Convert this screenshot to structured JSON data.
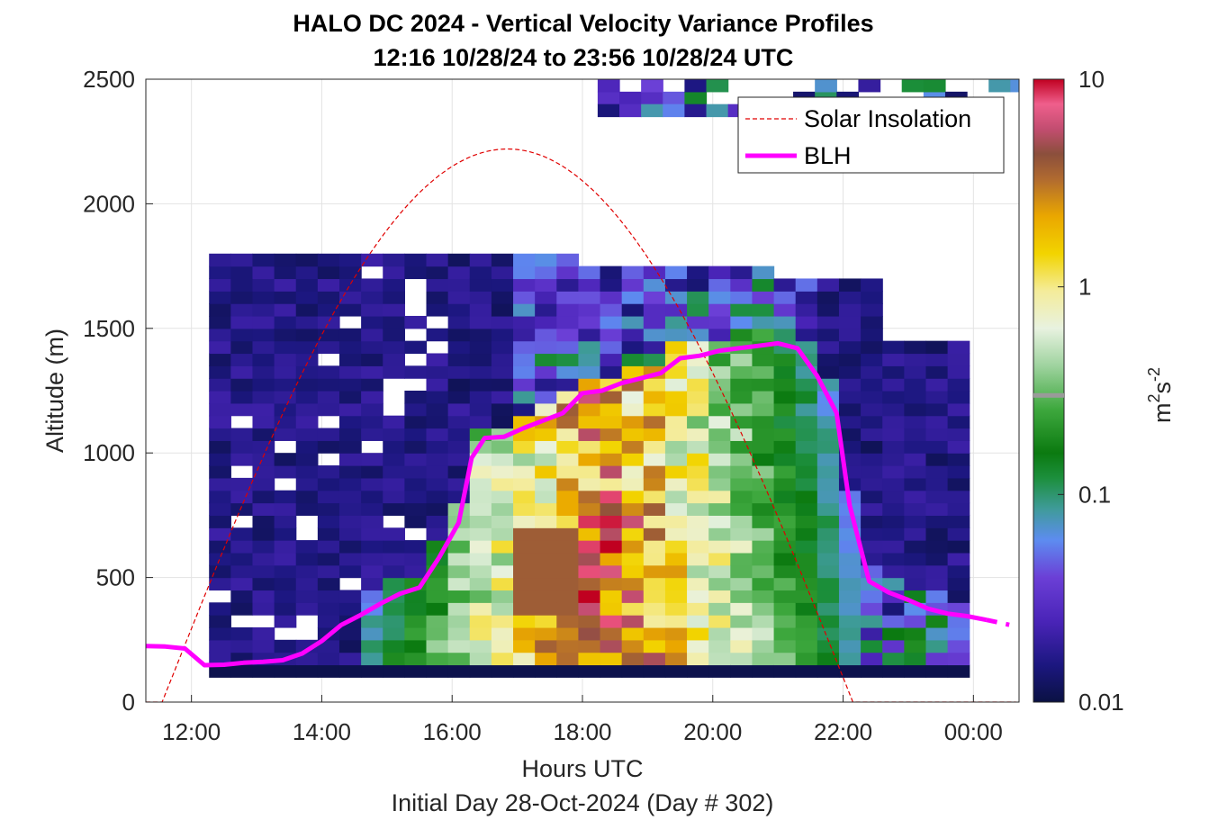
{
  "chart_data": {
    "type": "heatmap",
    "title": "HALO DC 2024 - Vertical Velocity Variance Profiles",
    "subtitle": "12:16 10/28/24 to 23:56 10/28/24  UTC",
    "xlabel": "Hours UTC",
    "xlabel2": "Initial Day 28-Oct-2024 (Day # 302)",
    "ylabel": "Altitude (m)",
    "x_ticks": [
      "12:00",
      "14:00",
      "16:00",
      "18:00",
      "20:00",
      "22:00",
      "00:00"
    ],
    "y_ticks": [
      "0",
      "500",
      "1000",
      "1500",
      "2000",
      "2500"
    ],
    "xlim_hours": [
      11.3,
      24.7
    ],
    "ylim": [
      0,
      2500
    ],
    "colorbar": {
      "label": "m²s⁻²",
      "label_base": "m",
      "label_exp1": "2",
      "label_mid": "s",
      "label_exp2": "-2",
      "scale": "log",
      "range": [
        0.01,
        10
      ],
      "ticks": [
        "0.01",
        "0.1",
        "1",
        "10"
      ]
    },
    "legend": {
      "placement": "top-right",
      "entries": [
        {
          "name": "Solar Insolation",
          "style": "dashed",
          "color": "#e00000"
        },
        {
          "name": "BLH",
          "style": "solid",
          "color": "#ff00ff"
        }
      ]
    },
    "blh": {
      "x_hours": [
        11.3,
        11.6,
        11.9,
        12.2,
        12.5,
        12.8,
        13.1,
        13.4,
        13.7,
        14.0,
        14.3,
        14.6,
        14.9,
        15.2,
        15.5,
        15.8,
        16.1,
        16.3,
        16.5,
        16.8,
        17.1,
        17.4,
        17.7,
        18.0,
        18.3,
        18.6,
        18.9,
        19.2,
        19.5,
        19.8,
        20.1,
        20.4,
        20.7,
        21.0,
        21.3,
        21.6,
        21.9,
        22.1,
        22.4,
        22.7,
        23.0,
        23.3,
        23.6,
        23.9,
        24.2
      ],
      "y_m": [
        225,
        223,
        215,
        148,
        150,
        158,
        162,
        168,
        195,
        245,
        310,
        350,
        395,
        435,
        460,
        580,
        720,
        980,
        1060,
        1065,
        1100,
        1130,
        1160,
        1240,
        1250,
        1280,
        1300,
        1320,
        1380,
        1390,
        1410,
        1420,
        1430,
        1440,
        1420,
        1310,
        1160,
        790,
        485,
        440,
        410,
        375,
        355,
        345,
        330
      ],
      "dashed_tail_x_hours": [
        24.2,
        24.55
      ],
      "dashed_tail_y_m": [
        330,
        310
      ]
    },
    "solar": {
      "peak_time_hours": 16.85,
      "peak_altitude_equiv_m": 2220,
      "half_width_hours": 5.3
    },
    "grid": true,
    "colormap_stops": [
      {
        "v": 0.0,
        "color": "#0a1143"
      },
      {
        "v": 0.06,
        "color": "#1c1780"
      },
      {
        "v": 0.13,
        "color": "#4a24b8"
      },
      {
        "v": 0.2,
        "color": "#6b3fd6"
      },
      {
        "v": 0.26,
        "color": "#5d8cf0"
      },
      {
        "v": 0.31,
        "color": "#3f9b9a"
      },
      {
        "v": 0.36,
        "color": "#1c8f3c"
      },
      {
        "v": 0.4,
        "color": "#0b7a10"
      },
      {
        "v": 0.47,
        "color": "#3ea83e"
      },
      {
        "v": 0.54,
        "color": "#9fd39f"
      },
      {
        "v": 0.6,
        "color": "#e8f2e0"
      },
      {
        "v": 0.66,
        "color": "#f4ec9a"
      },
      {
        "v": 0.72,
        "color": "#f2d400"
      },
      {
        "v": 0.78,
        "color": "#eaa700"
      },
      {
        "v": 0.84,
        "color": "#b06a30"
      },
      {
        "v": 0.88,
        "color": "#8b4f3c"
      },
      {
        "v": 0.92,
        "color": "#c24d70"
      },
      {
        "v": 0.96,
        "color": "#ef5f8c"
      },
      {
        "v": 1.0,
        "color": "#c00020"
      }
    ],
    "colorbar_marker_value": 0.3
  }
}
